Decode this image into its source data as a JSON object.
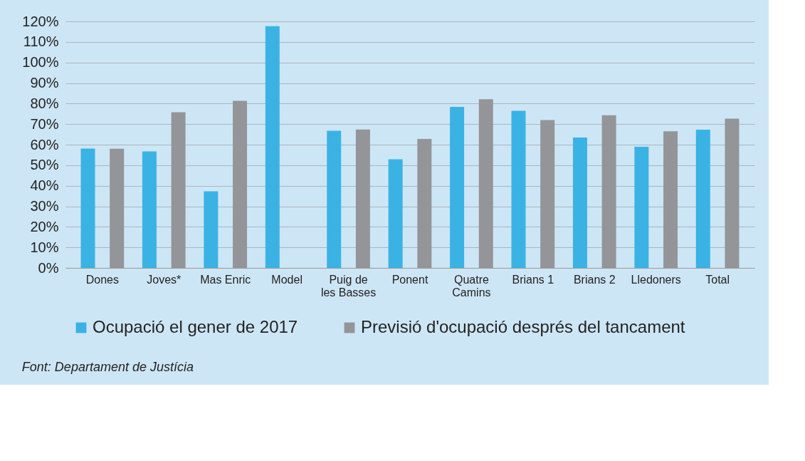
{
  "chart_data": {
    "type": "bar",
    "categories": [
      "Dones",
      "Joves*",
      "Mas Enric",
      "Model",
      "Puig de les Basses",
      "Ponent",
      "Quatre Camins",
      "Brians 1",
      "Brians 2",
      "Lledoners",
      "Total"
    ],
    "series": [
      {
        "name": "Ocupació el gener de 2017",
        "color": "#3ab3e4",
        "values": [
          58.1,
          56.7,
          37.3,
          117.7,
          66.8,
          52.9,
          78.4,
          76.5,
          63.5,
          59.0,
          67.3
        ]
      },
      {
        "name": "Previsió d'ocupació després del tancament",
        "color": "#939598",
        "values": [
          58.0,
          75.8,
          81.3,
          null,
          67.4,
          62.8,
          82.1,
          72.0,
          74.3,
          66.5,
          72.7
        ]
      }
    ],
    "ylim": [
      0,
      120
    ],
    "yticks": [
      {
        "value": 0,
        "label": "0%"
      },
      {
        "value": 10,
        "label": "10%"
      },
      {
        "value": 20,
        "label": "20%"
      },
      {
        "value": 30,
        "label": "30%"
      },
      {
        "value": 40,
        "label": "40%"
      },
      {
        "value": 50,
        "label": "50%"
      },
      {
        "value": 60,
        "label": "60%"
      },
      {
        "value": 70,
        "label": "70%"
      },
      {
        "value": 80,
        "label": "80%"
      },
      {
        "value": 90,
        "label": "90%"
      },
      {
        "value": 100,
        "label": "100%"
      },
      {
        "value": 110,
        "label": "110%"
      },
      {
        "value": 120,
        "label": "120%"
      }
    ],
    "grid": "y",
    "legend": "bottom",
    "annotations": [
      "Font: Departament de Justícia"
    ]
  }
}
